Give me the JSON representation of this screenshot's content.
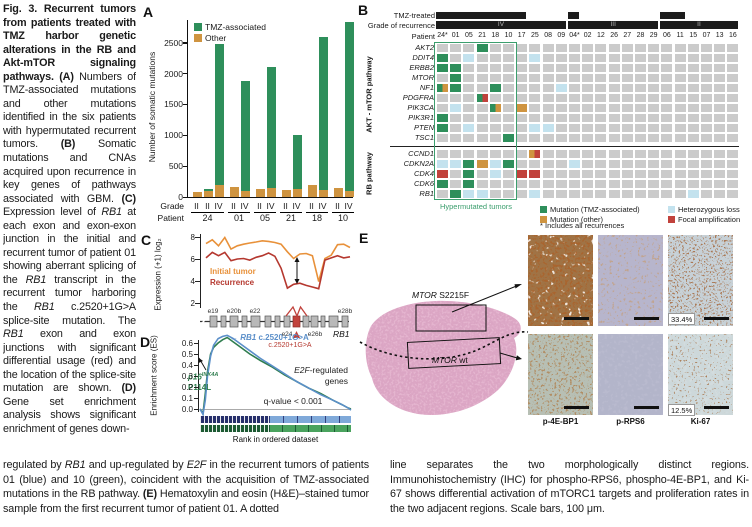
{
  "caption": {
    "left": [
      {
        "b": true,
        "t": "Fig. 3. Recurrent tumors from patients treated with TMZ harbor genetic alterations in the RB and Akt-mTOR signaling pathways. "
      },
      {
        "b": true,
        "t": "(A)"
      },
      {
        "t": " Numbers of TMZ-associated mutations and other mutations identified in the six patients with hypermutated recurrent tumors. "
      },
      {
        "b": true,
        "t": "(B)"
      },
      {
        "t": " Somatic mutations and CNAs acquired upon recurrence in key genes of pathways associated with GBM. "
      },
      {
        "b": true,
        "t": "(C)"
      },
      {
        "t": " Expression level of "
      },
      {
        "i": true,
        "t": "RB1"
      },
      {
        "t": " at each exon and exon-exon junction in the initial and recurrent tumor of patient 01 showing aberrant splicing of the "
      },
      {
        "i": true,
        "t": "RB1"
      },
      {
        "t": " transcript in the recurrent tumor harboring the "
      },
      {
        "i": true,
        "t": "RB1"
      },
      {
        "t": " c.2520+1G>A splice-site mutation. The "
      },
      {
        "i": true,
        "t": "RB1"
      },
      {
        "t": " exon and exon junctions with significant differential usage (red) and the location of the splice-site mutation are shown. "
      },
      {
        "b": true,
        "t": "(D)"
      },
      {
        "t": " Gene set enrichment analysis shows significant enrichment of genes down-"
      }
    ],
    "bottom_left": [
      {
        "t": "regulated by "
      },
      {
        "i": true,
        "t": "RB1"
      },
      {
        "t": " and up-regulated by "
      },
      {
        "i": true,
        "t": "E2F"
      },
      {
        "t": " in the recurrent tumors of patients 01 (blue) and 10 (green), coincident with the acquisition of TMZ-associated mutations in the RB pathway. "
      },
      {
        "b": true,
        "t": "(E)"
      },
      {
        "t": " Hematoxylin and eosin (H&E)–stained tumor sample from the first recurrent tumor of patient 01. A dotted"
      }
    ],
    "bottom_right": [
      {
        "t": "line separates the two morphologically distinct regions. Immunohistochemistry (IHC) for phospho-RPS6, phospho-4E-BP1, and Ki-67 shows differential activation of mTORC1 targets and proliferation rates in the two adjacent regions. Scale bars, 100 μm."
      }
    ]
  },
  "panelA": {
    "label": "A",
    "ylabel": "Number of somatic mutations",
    "grade_label": "Grade",
    "patient_label": "Patient"
  },
  "panelB": {
    "label": "B",
    "row_label_tmz": "TMZ-treated",
    "row_label_grade": "Grade of recurrence",
    "row_label_patient": "Patient",
    "pathway1": "AKT - mTOR pathway",
    "pathway2": "RB pathway",
    "hyper_label": "Hypermutated tumors",
    "patients": [
      "24*",
      "01",
      "05",
      "21",
      "18",
      "10",
      "17",
      "25",
      "08",
      "09",
      "04*",
      "02",
      "12",
      "26",
      "27",
      "28",
      "29",
      "06",
      "11",
      "15",
      "07",
      "13",
      "16"
    ],
    "genes": [
      "AKT2",
      "DDIT4",
      "ERBB2",
      "MTOR",
      "NF1",
      "PDGFRA",
      "PIK3CA",
      "PIK3R1",
      "PTEN",
      "TSC1",
      "CCND1",
      "CDKN2A",
      "CDK4",
      "CDK6",
      "RB1"
    ],
    "rb_start": 10,
    "tmz_bars": [
      [
        0,
        6
      ],
      [
        10,
        10
      ],
      [
        17,
        18
      ]
    ],
    "grade_bars": [
      {
        "label": "IV",
        "from": 0,
        "to": 9
      },
      {
        "label": "III",
        "from": 10,
        "to": 16
      },
      {
        "label": "II",
        "from": 17,
        "to": 22
      }
    ],
    "alterations": {
      "AKT2": [
        [
          "21",
          "tmz"
        ]
      ],
      "DDIT4": [
        [
          "24*",
          "tmz"
        ],
        [
          "05",
          "het"
        ],
        [
          "25",
          "het"
        ]
      ],
      "ERBB2": [
        [
          "24*",
          "tmz"
        ],
        [
          "01",
          "tmz"
        ]
      ],
      "MTOR": [
        [
          "01",
          "tmz"
        ]
      ],
      "NF1": [
        [
          "24*",
          "tmz+other"
        ],
        [
          "01",
          "tmz"
        ],
        [
          "18",
          "tmz"
        ],
        [
          "09",
          "het"
        ]
      ],
      "PDGFRA": [
        [
          "21",
          "tmz+amp"
        ]
      ],
      "PIK3CA": [
        [
          "01",
          "het"
        ],
        [
          "18",
          "tmz+other"
        ],
        [
          "17",
          "other"
        ]
      ],
      "PIK3R1": [
        [
          "24*",
          "tmz"
        ]
      ],
      "PTEN": [
        [
          "24*",
          "tmz"
        ],
        [
          "05",
          "het"
        ],
        [
          "25",
          "het"
        ],
        [
          "08",
          "het"
        ]
      ],
      "TSC1": [
        [
          "10",
          "tmz"
        ]
      ],
      "CCND1": [
        [
          "25",
          "other+amp"
        ]
      ],
      "CDKN2A": [
        [
          "24*",
          "het"
        ],
        [
          "01",
          "het"
        ],
        [
          "05",
          "tmz"
        ],
        [
          "21",
          "other"
        ],
        [
          "18",
          "het"
        ],
        [
          "10",
          "tmz"
        ],
        [
          "04*",
          "het"
        ]
      ],
      "CDK4": [
        [
          "24*",
          "amp"
        ],
        [
          "05",
          "tmz"
        ],
        [
          "18",
          "het"
        ],
        [
          "17",
          "amp"
        ],
        [
          "25",
          "amp"
        ]
      ],
      "CDK6": [
        [
          "24*",
          "tmz"
        ],
        [
          "05",
          "tmz"
        ]
      ],
      "RB1": [
        [
          "01",
          "tmz"
        ],
        [
          "05",
          "het"
        ],
        [
          "21",
          "het"
        ],
        [
          "25",
          "het"
        ],
        [
          "15",
          "het"
        ]
      ]
    },
    "legend": [
      {
        "label": "Mutation (TMZ-associated)",
        "type": "tmz"
      },
      {
        "label": "Mutation (other)",
        "type": "other"
      },
      {
        "label": "Heterozygous loss",
        "type": "het"
      },
      {
        "label": "Focal amplification",
        "type": "amp"
      }
    ],
    "legend_note": "* Includes all recurrences"
  },
  "panelC": {
    "label": "C",
    "ylabel": "Expression (+1) log₂",
    "legend_initial": "Initial tumor",
    "legend_recurrence": "Recurrence",
    "mutation_label": "c.2520+1G>A",
    "gene_label": "RB1",
    "exons_top": [
      "e19",
      "e20b",
      "e22",
      "e28b"
    ],
    "exons_bottom": [
      "e24",
      "e26b"
    ]
  },
  "panelD": {
    "label": "D",
    "ylabel": "Enrichment score (ES)",
    "xlabel": "Rank in ordered dataset",
    "curve1_pre": "← ",
    "curve1_gene": "RB1",
    "curve1_rest": " c.2520+1G>A",
    "curve2_gene": "p16",
    "curve2_sup": "INK4A",
    "curve2_line2": "P114L",
    "ann_gene": "E2F",
    "ann_rest": "-regulated",
    "ann_line2": "genes",
    "qvalue": "q-value < 0.001"
  },
  "panelE": {
    "label": "E",
    "mtor_mut_gene": "MTOR",
    "mtor_mut_rest": " S2215F",
    "mtor_wt_gene": "MTOR",
    "mtor_wt_rest": " wt",
    "ihc_labels": [
      "p-4E-BP1",
      "p-RPS6",
      "Ki-67"
    ],
    "pct_top": "33.4%",
    "pct_bottom": "12.5%"
  },
  "colors": {
    "tmz": "#2e8f5b",
    "other": "#cf9440",
    "het": "#c3e2ee",
    "amp": "#c1423c",
    "empty": "#cbcbcb",
    "bar_black": "#1c1c1c",
    "box_green": "#3b9e6d",
    "initial": "#e8913a",
    "recurrence": "#b5382f",
    "blue_curve": "#5b8fc9",
    "green_curve": "#2f7d4e",
    "tissue_pink": "#dca6c4"
  },
  "chart_data": [
    {
      "id": "A",
      "type": "bar",
      "stacked": true,
      "ylabel": "Number of somatic mutations",
      "ylim": [
        0,
        2870
      ],
      "yticks": [
        0,
        500,
        1000,
        1500,
        2000,
        2500
      ],
      "series_names": [
        "TMZ-associated",
        "Other"
      ],
      "groups": [
        {
          "patient": "24",
          "bars": [
            {
              "grade": "II",
              "other": 80,
              "tmz": 0
            },
            {
              "grade": "II",
              "other": 100,
              "tmz": 30
            },
            {
              "grade": "IV",
              "other": 190,
              "tmz": 2290
            }
          ]
        },
        {
          "patient": "01",
          "bars": [
            {
              "grade": "II",
              "other": 160,
              "tmz": 0
            },
            {
              "grade": "IV",
              "other": 105,
              "tmz": 1775
            }
          ]
        },
        {
          "patient": "05",
          "bars": [
            {
              "grade": "II",
              "other": 130,
              "tmz": 0
            },
            {
              "grade": "IV",
              "other": 140,
              "tmz": 1970
            }
          ]
        },
        {
          "patient": "21",
          "bars": [
            {
              "grade": "II",
              "other": 110,
              "tmz": 0
            },
            {
              "grade": "IV",
              "other": 130,
              "tmz": 870
            }
          ]
        },
        {
          "patient": "18",
          "bars": [
            {
              "grade": "II",
              "other": 200,
              "tmz": 0
            },
            {
              "grade": "IV",
              "other": 120,
              "tmz": 2480
            }
          ]
        },
        {
          "patient": "10",
          "bars": [
            {
              "grade": "II",
              "other": 140,
              "tmz": 0
            },
            {
              "grade": "IV",
              "other": 95,
              "tmz": 2735
            }
          ]
        }
      ]
    },
    {
      "id": "C",
      "type": "line",
      "ylabel": "Expression (+1) log2",
      "ylim": [
        1.5,
        8.5
      ],
      "yticks": [
        2,
        4,
        6,
        8
      ],
      "series": [
        {
          "name": "Initial tumor",
          "values": [
            7.4,
            7.75,
            7.2,
            7.95,
            6.9,
            7.2,
            7.35,
            7.45,
            7.55,
            7.65,
            7.6,
            7.5,
            7.35,
            6.65,
            6.05,
            6.45,
            6.5,
            6.3,
            3.95,
            6.05,
            6.35,
            7.3,
            7.35,
            7.05
          ]
        },
        {
          "name": "Recurrence",
          "values": [
            6.1,
            6.6,
            6.3,
            6.6,
            5.85,
            6.0,
            6.05,
            5.9,
            6.15,
            6.3,
            6.55,
            6.25,
            5.15,
            3.35,
            3.7,
            3.8,
            3.6,
            3.45,
            3.3,
            5.9,
            6.1,
            6.3,
            6.1,
            6.2
          ]
        }
      ]
    },
    {
      "id": "D",
      "type": "line",
      "ylabel": "Enrichment score (ES)",
      "xlabel": "Rank in ordered dataset",
      "yticks": [
        0.0,
        0.1,
        0.2,
        0.3,
        0.4,
        0.5,
        0.6
      ],
      "x": [
        0,
        0.02,
        0.035,
        0.05,
        0.07,
        0.09,
        0.12,
        0.15,
        0.18,
        0.22,
        0.27,
        0.33,
        0.4,
        0.48,
        0.56,
        0.64,
        0.72,
        0.8,
        0.88,
        0.94,
        0.98,
        1.0
      ],
      "series": [
        {
          "name": "RB1 c.2520+1G>A",
          "values": [
            0,
            -0.05,
            0.08,
            0.3,
            0.48,
            0.58,
            0.64,
            0.66,
            0.67,
            0.64,
            0.59,
            0.53,
            0.46,
            0.39,
            0.32,
            0.25,
            0.19,
            0.13,
            0.08,
            0.04,
            0.01,
            -0.01
          ]
        },
        {
          "name": "p16INK4A P114L",
          "values": [
            0,
            -0.04,
            0.14,
            0.34,
            0.5,
            0.56,
            0.6,
            0.63,
            0.65,
            0.61,
            0.56,
            0.5,
            0.44,
            0.38,
            0.31,
            0.25,
            0.19,
            0.14,
            0.08,
            0.04,
            0.01,
            0.0
          ]
        }
      ],
      "annotations": [
        "E2F-regulated genes",
        "q-value < 0.001"
      ]
    }
  ]
}
